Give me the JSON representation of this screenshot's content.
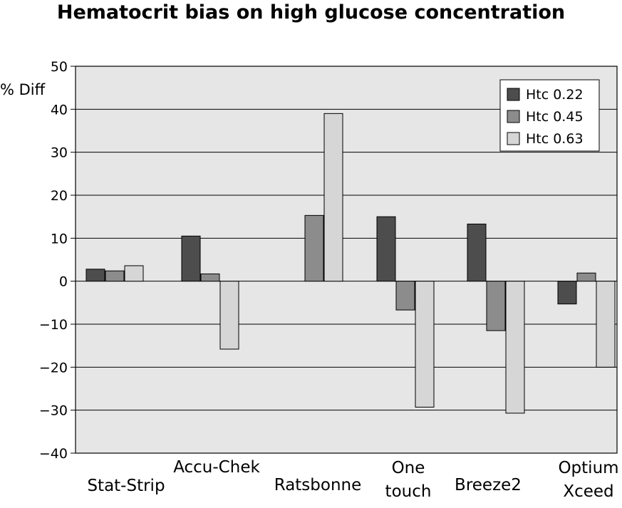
{
  "chart_data": {
    "type": "bar",
    "title": "Hematocrit bias on high glucose concentration",
    "ylabel": "% Diff",
    "xlabel": "",
    "ylim": [
      -40,
      50
    ],
    "yticks": [
      "50",
      "40",
      "30",
      "20",
      "10",
      "0",
      "−10",
      "−20",
      "−30",
      "−40"
    ],
    "ytick_values": [
      50,
      40,
      30,
      20,
      10,
      0,
      -10,
      -20,
      -30,
      -40
    ],
    "grid": true,
    "legend_position": "top-right",
    "categories": [
      [
        "Stat-Strip"
      ],
      [
        "Accu-Chek"
      ],
      [
        "Ratsbonne"
      ],
      [
        "One",
        "touch"
      ],
      [
        "Breeze2"
      ],
      [
        "Optium",
        "Xceed"
      ]
    ],
    "series": [
      {
        "name": "Htc 0.22",
        "color": "#4d4d4d",
        "values": [
          2.8,
          10.5,
          null,
          15.0,
          13.3,
          -5.3
        ]
      },
      {
        "name": "Htc 0.45",
        "color": "#8c8c8c",
        "values": [
          2.4,
          1.7,
          15.3,
          -6.7,
          -11.5,
          1.9
        ]
      },
      {
        "name": "Htc 0.63",
        "color": "#d6d6d6",
        "values": [
          3.6,
          -15.8,
          39.0,
          -29.3,
          -30.7,
          -20.0
        ]
      }
    ],
    "colors": {
      "plot_background": "#e6e6e6",
      "gridline": "#000000"
    }
  }
}
